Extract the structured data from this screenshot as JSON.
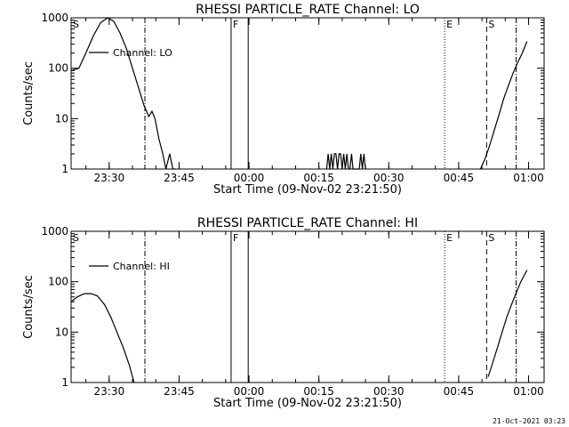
{
  "footer": {
    "timestamp": "21-Oct-2021 03:23"
  },
  "chart_data": [
    {
      "type": "line",
      "title": "RHESSI PARTICLE_RATE Channel: LO",
      "xlabel": "Start Time (09-Nov-02 23:21:50)",
      "ylabel": "Counts/sec",
      "y_scale": "log",
      "xlim": [
        "23:21:50",
        "01:03:20"
      ],
      "ylim": [
        1,
        1000
      ],
      "xticks": [
        "23:30",
        "23:45",
        "00:00",
        "00:15",
        "00:30",
        "00:45",
        "01:00"
      ],
      "yticks": [
        "1",
        "10",
        "100",
        "1000"
      ],
      "legend": {
        "placement": "top-left",
        "entries": [
          "Channel: LO"
        ]
      },
      "series": [
        {
          "name": "Channel: LO",
          "x": [
            "23:21:50",
            "23:23:30",
            "23:25:00",
            "23:26:40",
            "23:28:10",
            "23:29:40",
            "23:31:00",
            "23:32:20",
            "23:33:40",
            "23:35:00",
            "23:36:20",
            "23:37:30",
            "23:38:30",
            "23:39:10",
            "23:39:50",
            "23:40:40",
            "23:41:30",
            "23:42:10",
            "23:43:00",
            "23:43:40",
            "23:44:10",
            "00:16:40",
            "00:17:00",
            "00:17:20",
            "00:17:40",
            "00:18:00",
            "00:18:20",
            "00:18:40",
            "00:19:00",
            "00:19:20",
            "00:19:40",
            "00:20:00",
            "00:20:20",
            "00:20:40",
            "00:21:00",
            "00:21:20",
            "00:21:40",
            "00:22:00",
            "00:22:20",
            "00:22:40",
            "00:23:00",
            "00:23:40",
            "00:24:00",
            "00:24:20",
            "00:24:40",
            "00:25:00",
            "00:49:40",
            "00:50:40",
            "00:51:40",
            "00:52:40",
            "00:53:40",
            "00:54:40",
            "00:55:40",
            "00:56:40",
            "00:57:40",
            "00:58:40",
            "00:59:40"
          ],
          "y": [
            90,
            100,
            200,
            450,
            800,
            1000,
            850,
            500,
            250,
            100,
            40,
            18,
            11,
            14,
            10,
            4,
            2,
            1,
            2,
            1,
            1,
            1,
            2,
            1,
            2,
            1,
            2,
            2,
            1,
            2,
            2,
            1,
            2,
            1,
            2,
            1,
            1,
            2,
            1,
            1,
            1,
            1,
            2,
            1,
            2,
            1,
            1,
            1.6,
            3,
            6,
            12,
            25,
            45,
            80,
            130,
            200,
            340
          ]
        }
      ],
      "annotations": [
        {
          "label": "S",
          "x": "23:21:50",
          "style": "solid"
        },
        {
          "label": "",
          "x": "23:37:40",
          "style": "dash-dot"
        },
        {
          "label": "F",
          "x": "23:56:10",
          "style": "solid"
        },
        {
          "label": "",
          "x": "23:59:50",
          "style": "solid"
        },
        {
          "label": "E",
          "x": "00:42:00",
          "style": "dotted"
        },
        {
          "label": "S",
          "x": "00:51:00",
          "style": "dashed"
        },
        {
          "label": "",
          "x": "00:57:20",
          "style": "dash-dot"
        }
      ]
    },
    {
      "type": "line",
      "title": "RHESSI PARTICLE_RATE Channel: HI",
      "xlabel": "Start Time (09-Nov-02 23:21:50)",
      "ylabel": "Counts/sec",
      "y_scale": "log",
      "xlim": [
        "23:21:50",
        "01:03:20"
      ],
      "ylim": [
        1,
        1000
      ],
      "xticks": [
        "23:30",
        "23:45",
        "00:00",
        "00:15",
        "00:30",
        "00:45",
        "01:00"
      ],
      "yticks": [
        "1",
        "10",
        "100",
        "1000"
      ],
      "legend": {
        "placement": "top-left",
        "entries": [
          "Channel: HI"
        ]
      },
      "series": [
        {
          "name": "Channel: HI",
          "x": [
            "23:21:50",
            "23:23:10",
            "23:24:40",
            "23:26:10",
            "23:27:30",
            "23:29:00",
            "23:30:20",
            "23:31:40",
            "23:33:00",
            "23:34:20",
            "23:35:20",
            "00:51:20",
            "00:52:20",
            "00:53:20",
            "00:54:20",
            "00:55:20",
            "00:56:20",
            "00:57:20",
            "00:58:20",
            "00:59:40"
          ],
          "y": [
            40,
            50,
            58,
            58,
            52,
            35,
            20,
            10,
            5,
            2.2,
            1,
            1.3,
            2.5,
            5,
            10,
            20,
            35,
            60,
            100,
            170
          ]
        }
      ],
      "annotations": [
        {
          "label": "S",
          "x": "23:21:50",
          "style": "solid"
        },
        {
          "label": "",
          "x": "23:37:40",
          "style": "dash-dot"
        },
        {
          "label": "F",
          "x": "23:56:10",
          "style": "solid"
        },
        {
          "label": "",
          "x": "23:59:50",
          "style": "solid"
        },
        {
          "label": "E",
          "x": "00:42:00",
          "style": "dotted"
        },
        {
          "label": "S",
          "x": "00:51:00",
          "style": "dashed"
        },
        {
          "label": "",
          "x": "00:57:20",
          "style": "dash-dot"
        }
      ]
    }
  ]
}
